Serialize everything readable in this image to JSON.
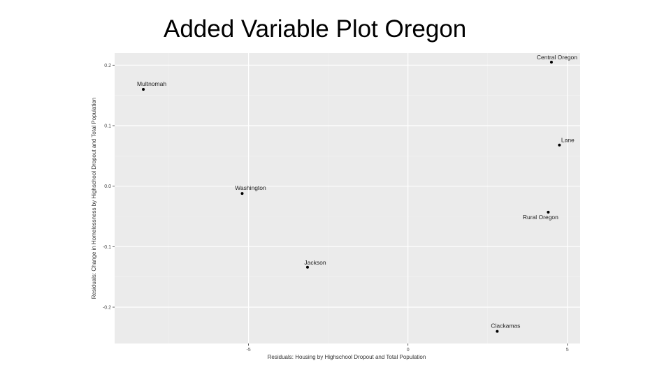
{
  "slide": {
    "title": "Added Variable Plot Oregon"
  },
  "chart_data": {
    "type": "scatter",
    "title": "",
    "xlabel": "Residuals: Housing by Highschool Dropout and Total Population",
    "ylabel": "Residuals: Change in Homelessness by Highschool Dropout and Total Population",
    "xlim": [
      -9.2,
      5.4
    ],
    "ylim": [
      -0.26,
      0.22
    ],
    "x_ticks": [
      -5,
      0,
      5
    ],
    "x_tick_labels": [
      "-5",
      "0",
      "5"
    ],
    "y_ticks": [
      -0.2,
      -0.1,
      0.0,
      0.1,
      0.2
    ],
    "y_tick_labels": [
      "-0.2",
      "-0.1",
      "0.0",
      "0.1",
      "0.2"
    ],
    "grid": true,
    "colors": {
      "panel": "#ebebeb",
      "grid_major": "#ffffff",
      "grid_minor": "#f2f2f2",
      "point": "#000000"
    },
    "points": [
      {
        "label": "Multnomah",
        "x": -8.3,
        "y": 0.16
      },
      {
        "label": "Central Oregon",
        "x": 4.5,
        "y": 0.205
      },
      {
        "label": "Lane",
        "x": 4.75,
        "y": 0.068
      },
      {
        "label": "Washington",
        "x": -5.2,
        "y": -0.012
      },
      {
        "label": "Rural Oregon",
        "x": 4.4,
        "y": -0.043
      },
      {
        "label": "Jackson",
        "x": -3.15,
        "y": -0.134
      },
      {
        "label": "Clackamas",
        "x": 2.8,
        "y": -0.24
      }
    ]
  }
}
